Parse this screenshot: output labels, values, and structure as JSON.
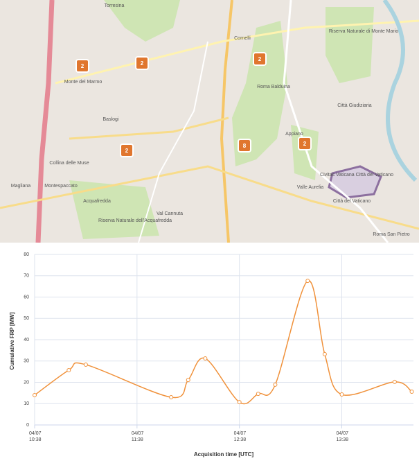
{
  "map": {
    "clusters": [
      "2",
      "2",
      "2",
      "2",
      "8",
      "2"
    ],
    "labels": [
      "Torresina",
      "Monte del Marmo",
      "Baslogi",
      "Collina delle Muse",
      "Magliana",
      "Montespaccato",
      "Acquafredda",
      "Riserva Naturale dell'Acquafredda",
      "Val Cannuta",
      "Cornelli",
      "Roma Balduina",
      "Appiano",
      "Città Giudiziaria",
      "Valle Aurelia",
      "Civitas Vaticana Città del Vaticano",
      "Roma San Pietro",
      "Riserva Naturale di Monte Mario",
      "Città del Vaticano"
    ]
  },
  "chart_data": {
    "type": "line",
    "y_label": "Cumulative FRP [MW]",
    "x_label": "Acquisition time [UTC]",
    "x": [
      "04/07 10:38",
      "04/07 10:58",
      "04/07 11:08",
      "04/07 11:58",
      "04/07 12:08",
      "04/07 12:18",
      "04/07 12:38",
      "04/07 12:49",
      "04/07 12:59",
      "04/07 13:18",
      "04/07 13:28",
      "04/07 13:38",
      "04/07 14:09",
      "04/07 14:19"
    ],
    "values": [
      14.0,
      25.7,
      28.3,
      13.0,
      21.1,
      31.2,
      10.7,
      14.6,
      18.9,
      67.6,
      33.2,
      14.3,
      20.2,
      15.6
    ],
    "color": "#f0913a",
    "xlim": [
      "04/07 10:38",
      "04/07 14:20"
    ],
    "xticks": [
      "04/07 10:38",
      "04/07 11:38",
      "04/07 12:38",
      "04/07 13:38"
    ],
    "ylim": [
      0,
      80
    ],
    "yticks": [
      0,
      10,
      20,
      30,
      40,
      50,
      60,
      70,
      80
    ],
    "grid": true
  }
}
